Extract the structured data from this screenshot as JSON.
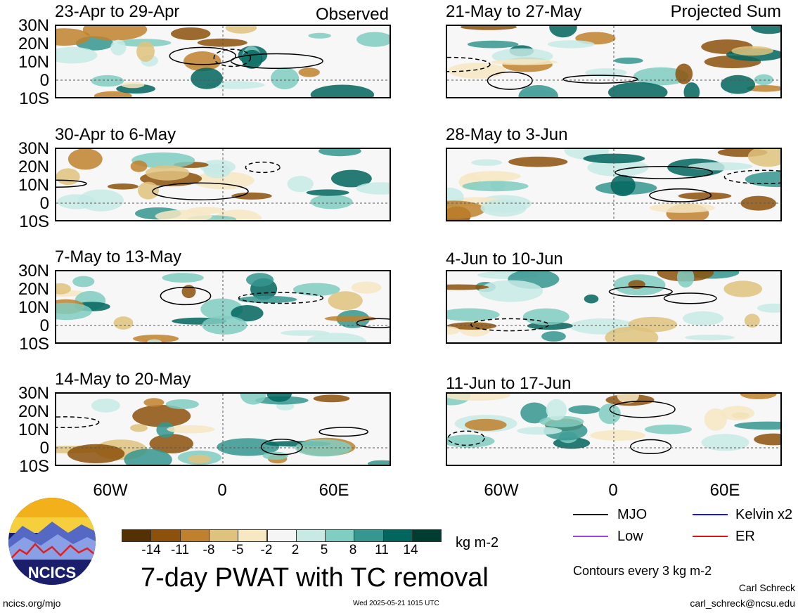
{
  "panels_left": [
    {
      "title": "23-Apr to 29-Apr",
      "label": "Observed"
    },
    {
      "title": "30-Apr to 6-May",
      "label": ""
    },
    {
      "title": "7-May to 13-May",
      "label": ""
    },
    {
      "title": "14-May to 20-May",
      "label": ""
    }
  ],
  "panels_right": [
    {
      "title": "21-May to 27-May",
      "label": "Projected Sum"
    },
    {
      "title": "28-May to 3-Jun",
      "label": ""
    },
    {
      "title": "4-Jun to 10-Jun",
      "label": ""
    },
    {
      "title": "11-Jun to 17-Jun",
      "label": ""
    }
  ],
  "lat_labels": [
    "30N",
    "20N",
    "10N",
    "0",
    "10S"
  ],
  "lon_labels": [
    "60W",
    "0",
    "60E"
  ],
  "legend": {
    "mjo": "MJO",
    "kelvin": "Kelvin x2",
    "low": "Low",
    "er": "ER",
    "contours": "Contours every 3 kg m-2",
    "colors": {
      "mjo": "#000000",
      "kelvin": "#1414ff",
      "low": "#a040e0",
      "er": "#e01414"
    }
  },
  "colorbar": {
    "ticks": [
      "-14",
      "-11",
      "-8",
      "-5",
      "-2",
      "2",
      "5",
      "8",
      "11",
      "14"
    ],
    "units": "kg m-2",
    "colors": [
      "#543005",
      "#8c510a",
      "#bf812d",
      "#dfc27d",
      "#f6e8c3",
      "#f5f5f5",
      "#c7eae5",
      "#80cdc1",
      "#35978f",
      "#01665e",
      "#003c30"
    ]
  },
  "main_title": "7-day PWAT with TC removal",
  "logo_text": "NCICS",
  "footer": {
    "url": "ncics.org/mjo",
    "timestamp": "Wed 2025-05-21 1015 UTC",
    "author": "Carl Schreck",
    "email": "carl_schreck@ncsu.edu"
  }
}
